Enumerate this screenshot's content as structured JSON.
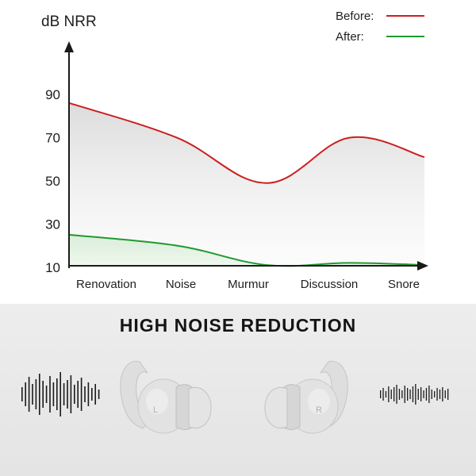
{
  "chart_data": {
    "type": "line",
    "ylabel": "dB NRR",
    "categories": [
      "Renovation",
      "Noise",
      "Murmur",
      "Discussion",
      "Snore"
    ],
    "yticks": [
      10,
      30,
      50,
      70,
      90
    ],
    "ylim": [
      0,
      100
    ],
    "series": [
      {
        "name": "Before:",
        "color": "#cc1f1f",
        "values": [
          86,
          70,
          49,
          70,
          61
        ]
      },
      {
        "name": "After:",
        "color": "#1f9a2e",
        "values": [
          25,
          20,
          11,
          12,
          11
        ]
      }
    ],
    "grid": false,
    "legend": "top-right"
  },
  "banner": {
    "headline": "HIGH NOISE REDUCTION",
    "left_earplug_letter": "L",
    "right_earplug_letter": "R"
  },
  "icons": [
    "loud-soundwave-icon",
    "earplug-left-icon",
    "earplug-right-icon",
    "quiet-soundwave-icon"
  ]
}
